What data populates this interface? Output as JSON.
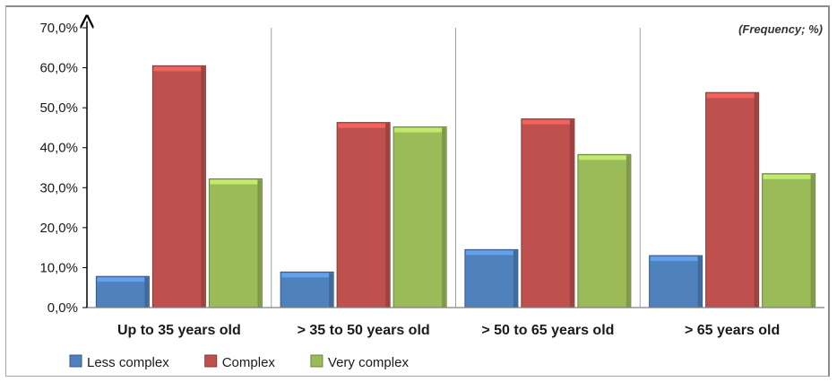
{
  "chart_data": {
    "type": "bar",
    "categories": [
      "Up to 35 years old",
      "> 35 to 50 years old",
      "> 50 to 65 years old",
      "> 65 years old"
    ],
    "series": [
      {
        "name": "Less complex",
        "values": [
          7.8,
          8.9,
          14.5,
          13.0
        ],
        "color": "#4f81bd"
      },
      {
        "name": "Complex",
        "values": [
          60.5,
          46.3,
          47.2,
          53.8
        ],
        "color": "#c0504d"
      },
      {
        "name": "Very complex",
        "values": [
          32.2,
          45.2,
          38.3,
          33.5
        ],
        "color": "#9bbb59"
      }
    ],
    "ylim": [
      0,
      70
    ],
    "yticks": [
      "0,0%",
      "10,0%",
      "20,0%",
      "30,0%",
      "40,0%",
      "50,0%",
      "60,0%",
      "70,0%"
    ],
    "unit_note": "(Frequency; %)",
    "legend_position": "bottom-left",
    "grid": "vertical separators between categories"
  }
}
